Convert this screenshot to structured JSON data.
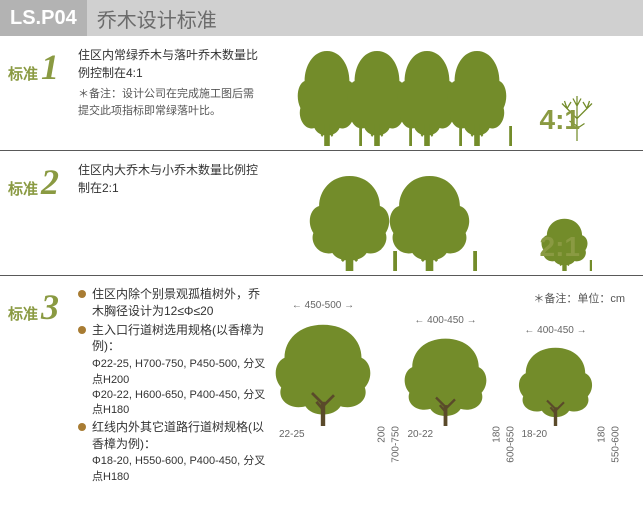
{
  "header": {
    "code": "LS.P04",
    "title": "乔木设计标准"
  },
  "colors": {
    "accent": "#8a9a42",
    "tree": "#738c2a",
    "bullet": "#a87c33",
    "header_code_bg": "#b3b3b3",
    "header_bar_bg": "#d0d0d0"
  },
  "std1": {
    "label": "标准",
    "num": "1",
    "desc": "住区内常绿乔木与落叶乔木数量比例控制在4:1",
    "note": "＊备注：设计公司在完成施工图后需提交此项指标即常绿落叶比。",
    "ratio": "4:1",
    "big_tree_count": 4,
    "big_tree_w": 70,
    "big_tree_h": 100,
    "small_tree_w": 50,
    "small_tree_h": 60
  },
  "std2": {
    "label": "标准",
    "num": "2",
    "desc": "住区内大乔木与小乔木数量比例控制在2:1",
    "ratio": "2:1",
    "big_tree_count": 2,
    "big_tree_w": 95,
    "big_tree_h": 100,
    "small_tree_w": 55,
    "small_tree_h": 55
  },
  "std3": {
    "label": "标准",
    "num": "3",
    "unit_note": "＊备注：单位：cm",
    "bullets": [
      {
        "main": "住区内除个别景观孤植树外，乔木胸径设计为12≤Φ≤20"
      },
      {
        "main": "主入口行道树选用规格(以香樟为例)：",
        "subs": [
          "Φ22-25, H700-750, P450-500, 分叉点H200",
          "Φ20-22, H600-650, P400-450, 分叉点H180"
        ]
      },
      {
        "main": "红线内外其它道路行道树规格(以香樟为例)：",
        "subs": [
          "Φ18-20, H550-600, P400-450, 分叉点H180"
        ]
      }
    ],
    "specs": [
      {
        "crown": "450-500",
        "diam": "22-25",
        "branch": "200",
        "height": "700-750",
        "size": 110
      },
      {
        "crown": "400-450",
        "diam": "20-22",
        "branch": "180",
        "height": "600-650",
        "size": 95
      },
      {
        "crown": "400-450",
        "diam": "18-20",
        "branch": "180",
        "height": "550-600",
        "size": 85
      }
    ]
  }
}
